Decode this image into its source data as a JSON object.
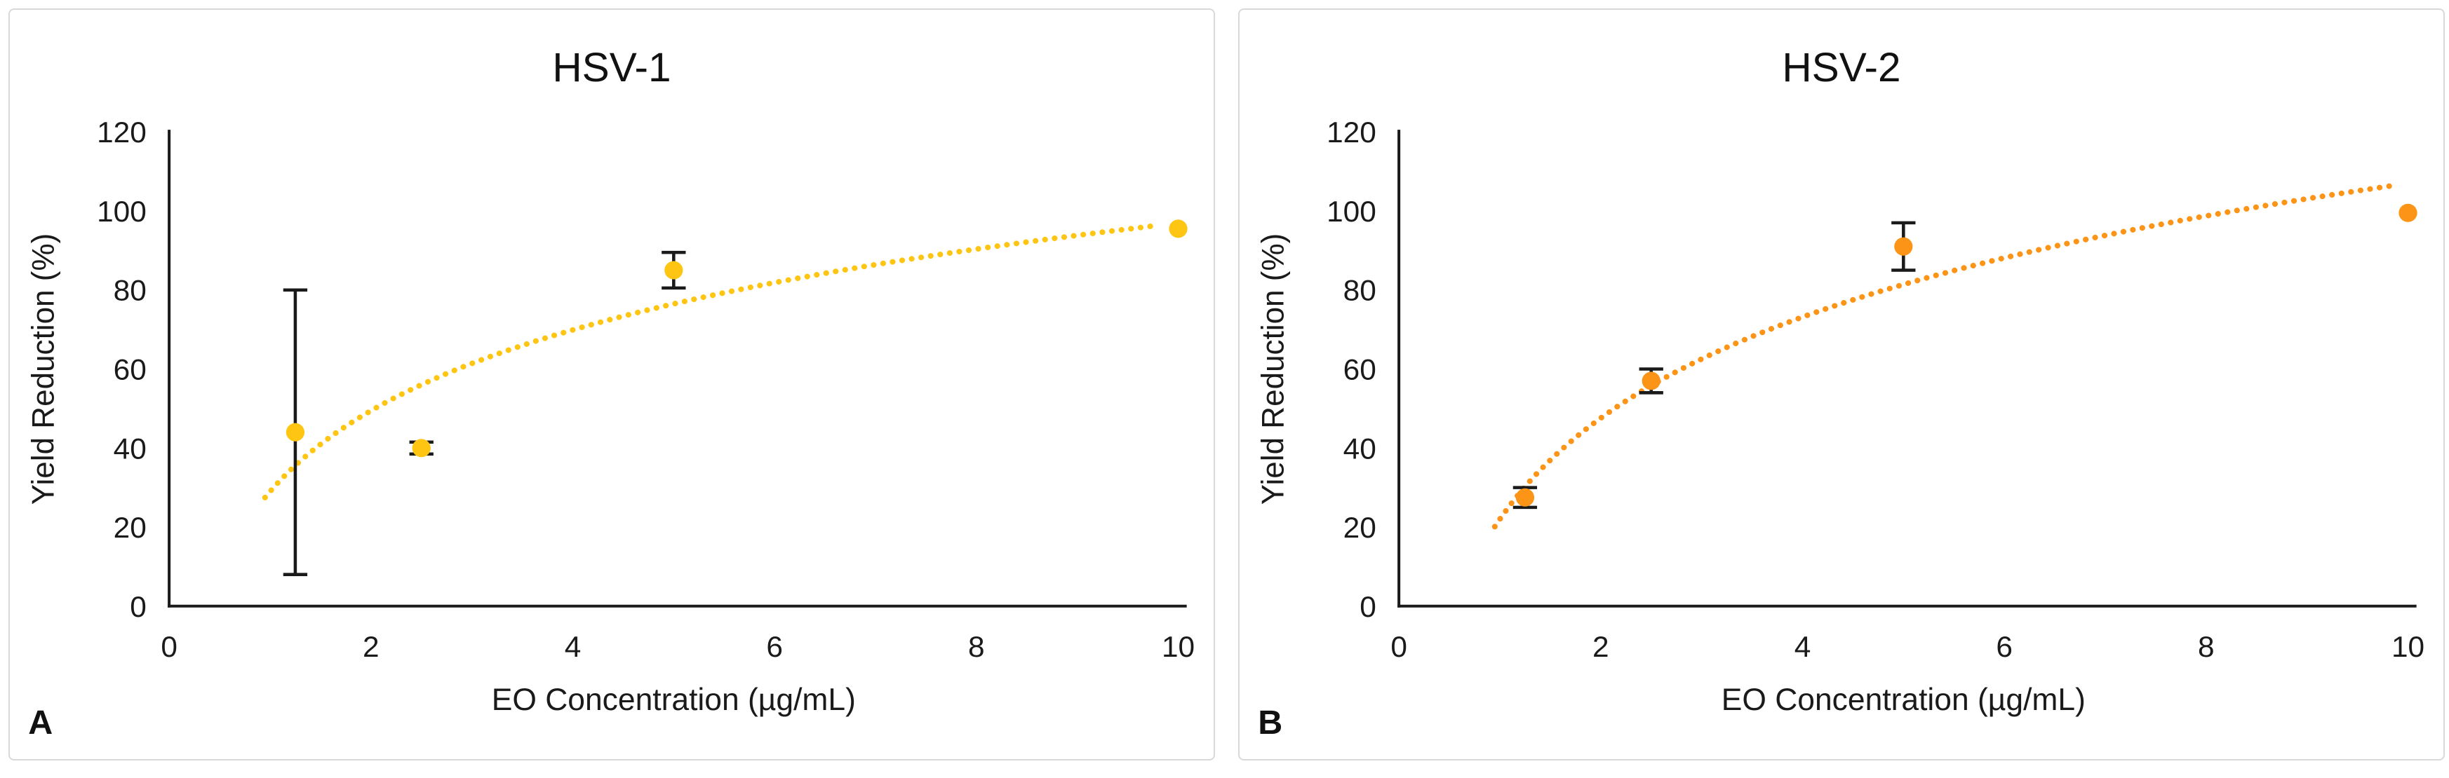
{
  "figure": {
    "background": "#ffffff",
    "card_border_color": "#d9d9d9",
    "text_color": "#1a1a1a",
    "panels": [
      {
        "letter": "A",
        "title": "HSV-1"
      },
      {
        "letter": "B",
        "title": "HSV-2"
      }
    ]
  },
  "chart_data": [
    {
      "type": "scatter",
      "panel_letter": "A",
      "title": "HSV-1",
      "xlabel": "EO Concentration (µg/mL)",
      "ylabel": "Yield Reduction (%)",
      "xlim": [
        0,
        10
      ],
      "ylim": [
        0,
        120
      ],
      "xticks": [
        0,
        2,
        4,
        6,
        8,
        10
      ],
      "yticks": [
        0,
        20,
        40,
        60,
        80,
        100,
        120
      ],
      "grid": false,
      "legend": "none",
      "marker_color": "#FFC513",
      "error_bar_color": "#1a1a1a",
      "points": [
        {
          "x": 1.25,
          "y": 44,
          "err": 36
        },
        {
          "x": 2.5,
          "y": 40,
          "err": 1.5
        },
        {
          "x": 5,
          "y": 85,
          "err": 4.5
        },
        {
          "x": 10,
          "y": 95.5,
          "err": 0
        }
      ],
      "trendline": {
        "type": "logarithmic",
        "style": "dotted",
        "color": "#FFC513",
        "equation": "y = 29.5·ln(x) + 29",
        "ln_coef": 29.5,
        "intercept": 29,
        "x_start": 0.95,
        "x_end": 9.8
      }
    },
    {
      "type": "scatter",
      "panel_letter": "B",
      "title": "HSV-2",
      "xlabel": "EO Concentration (µg/mL)",
      "ylabel": "Yield Reduction (%)",
      "xlim": [
        0,
        10
      ],
      "ylim": [
        0,
        120
      ],
      "xticks": [
        0,
        2,
        4,
        6,
        8,
        10
      ],
      "yticks": [
        0,
        20,
        40,
        60,
        80,
        100,
        120
      ],
      "grid": false,
      "legend": "none",
      "marker_color": "#FB9417",
      "error_bar_color": "#1a1a1a",
      "points": [
        {
          "x": 1.25,
          "y": 27.5,
          "err": 2.5
        },
        {
          "x": 2.5,
          "y": 57,
          "err": 3
        },
        {
          "x": 5,
          "y": 91,
          "err": 6
        },
        {
          "x": 10,
          "y": 99.5,
          "err": 0
        }
      ],
      "trendline": {
        "type": "logarithmic",
        "style": "dotted",
        "color": "#FB9417",
        "equation": "y = 36.9·ln(x) + 22",
        "ln_coef": 36.9,
        "intercept": 22,
        "x_start": 0.95,
        "x_end": 9.9
      }
    }
  ]
}
